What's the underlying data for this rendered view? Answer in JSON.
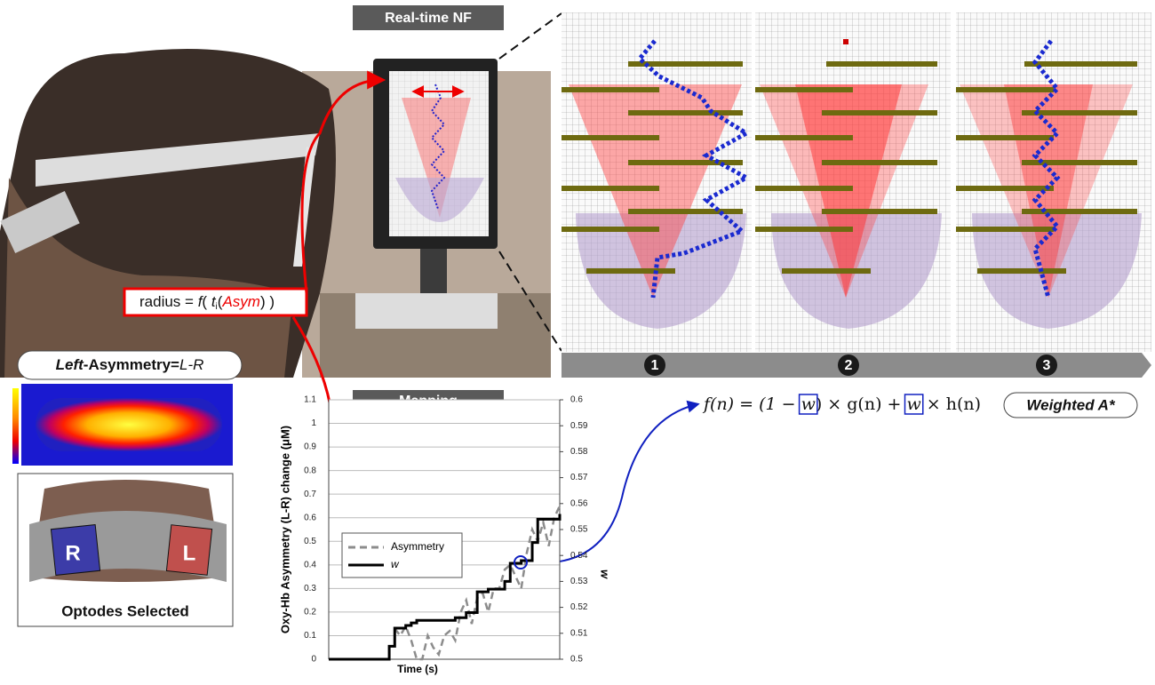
{
  "header": {
    "title": "Real-time NF"
  },
  "radius_label": {
    "parts": [
      "radius = ",
      "f",
      "( ",
      "t",
      "i",
      "(",
      "Asym",
      ") )"
    ]
  },
  "asymmetry_label": {
    "parts": [
      "Left",
      "-Asymmetry=",
      "L-R"
    ]
  },
  "optodes": {
    "right": "R",
    "left": "L",
    "caption": "Optodes Selected"
  },
  "panels": {
    "labels": [
      "1",
      "2",
      "3"
    ]
  },
  "formula": {
    "parts": [
      "f(n) = (1 − ",
      "w",
      ") × g(n) + ",
      "w",
      " × h(n)"
    ],
    "algorithm": "Weighted A*"
  },
  "mapping": {
    "title": "Mapping",
    "type": "line",
    "y_label": "Oxy-Hb Asymmetry (L-R) change (μM)",
    "x_label": "Time (s)",
    "y2_label": "w",
    "ylim": [
      0,
      1.1
    ],
    "yticks": [
      0,
      0.1,
      0.2,
      0.3,
      0.4,
      0.5,
      0.6,
      0.7,
      0.8,
      0.9,
      1,
      1.1
    ],
    "y2lim": [
      0.5,
      0.6
    ],
    "y2ticks": [
      0.5,
      0.51,
      0.52,
      0.53,
      0.54,
      0.55,
      0.56,
      0.57,
      0.58,
      0.59,
      0.6
    ],
    "grid": true,
    "series": [
      {
        "name": "Asymmetry",
        "color": "#8c8c8c",
        "dashed": true,
        "values": [
          null,
          null,
          null,
          null,
          null,
          null,
          null,
          null,
          null,
          null,
          null,
          null,
          0.13,
          0.1,
          0.14,
          0.08,
          0.0,
          0.0,
          0.1,
          0.05,
          0.02,
          0.1,
          0.12,
          0.08,
          0.2,
          0.25,
          0.15,
          0.26,
          0.28,
          0.2,
          0.3,
          0.3,
          0.38,
          0.4,
          0.35,
          0.3,
          0.45,
          0.55,
          0.5,
          0.58,
          0.48,
          0.6,
          0.65
        ]
      },
      {
        "name": "w",
        "color": "#000000",
        "axis": "y2",
        "values": [
          0.5,
          0.5,
          0.5,
          0.5,
          0.5,
          0.5,
          0.5,
          0.5,
          0.5,
          0.5,
          0.5,
          0.505,
          0.512,
          0.512,
          0.513,
          0.514,
          0.515,
          0.515,
          0.515,
          0.515,
          0.515,
          0.515,
          0.515,
          0.516,
          0.516,
          0.518,
          0.518,
          0.526,
          0.526,
          0.527,
          0.527,
          0.527,
          0.53,
          0.537,
          0.537,
          0.538,
          0.538,
          0.545,
          0.554,
          0.554,
          0.554,
          0.554,
          0.556
        ]
      }
    ]
  }
}
